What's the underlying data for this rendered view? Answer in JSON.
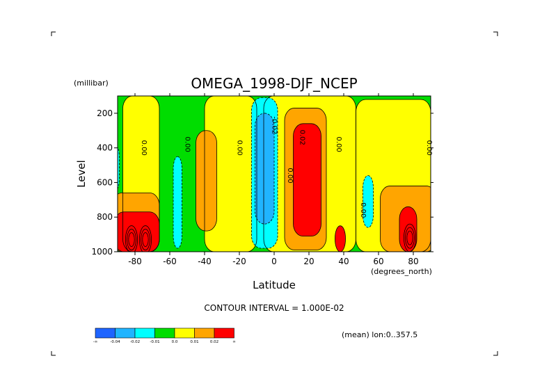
{
  "chart_data": {
    "type": "heatmap",
    "title": "OMEGA_1998-DJF_NCEP",
    "xlabel": "Latitude",
    "ylabel": "Level",
    "x_units": "(degrees_north)",
    "y_units": "(millibar)",
    "xlim": [
      -90,
      90
    ],
    "ylim": [
      1000,
      100
    ],
    "x_ticks": [
      -80,
      -60,
      -40,
      -20,
      0,
      20,
      40,
      60,
      80
    ],
    "y_ticks": [
      200,
      400,
      600,
      800,
      1000
    ],
    "contour_interval_text": "CONTOUR INTERVAL = 1.000E-02",
    "subtitle": "(mean) lon:0..357.5",
    "colorbar": {
      "colors": [
        "#1e64ff",
        "#20b4ff",
        "#00ffff",
        "#00dd00",
        "#ffff00",
        "#ffa500",
        "#ff0000"
      ],
      "labels": [
        "-∞",
        "-0.04",
        "-0.02",
        "-0.01",
        "0.0",
        "0.01",
        "0.02",
        "∞"
      ]
    },
    "contour_labels": [
      {
        "text": "0.00",
        "lat": -76,
        "level": 400
      },
      {
        "text": "0.00",
        "lat": -51,
        "level": 380
      },
      {
        "text": "0.00",
        "lat": -21,
        "level": 400
      },
      {
        "text": "-0.02",
        "lat": -1,
        "level": 270
      },
      {
        "text": "0.02",
        "lat": 15,
        "level": 340
      },
      {
        "text": "0.00",
        "lat": 8,
        "level": 560
      },
      {
        "text": "0.00",
        "lat": 36,
        "level": 380
      },
      {
        "text": "0.00",
        "lat": 50,
        "level": 760
      },
      {
        "text": "0.00",
        "lat": 88,
        "level": 400
      }
    ],
    "regions": [
      {
        "category": "green",
        "lat_range": [
          -90,
          90
        ],
        "level_range": [
          100,
          1000
        ]
      },
      {
        "category": "yellow",
        "lat_range": [
          -87,
          -66
        ],
        "level_range": [
          100,
          1000
        ]
      },
      {
        "category": "yellow",
        "lat_range": [
          -40,
          -10
        ],
        "level_range": [
          100,
          1000
        ]
      },
      {
        "category": "yellow",
        "lat_range": [
          -6,
          47
        ],
        "level_range": [
          100,
          1000
        ]
      },
      {
        "category": "yellow",
        "lat_range": [
          47,
          90
        ],
        "level_range": [
          120,
          1000
        ]
      },
      {
        "category": "orange",
        "lat_range": [
          -45,
          -33
        ],
        "level_range": [
          300,
          880
        ]
      },
      {
        "category": "orange",
        "lat_range": [
          6,
          30
        ],
        "level_range": [
          170,
          990
        ]
      },
      {
        "category": "orange",
        "lat_range": [
          61,
          93
        ],
        "level_range": [
          620,
          1000
        ]
      },
      {
        "category": "orange",
        "lat_range": [
          -93,
          -66
        ],
        "level_range": [
          660,
          1000
        ]
      },
      {
        "category": "cyan",
        "lat_range": [
          -13,
          2
        ],
        "level_range": [
          110,
          980
        ]
      },
      {
        "category": "cyan",
        "lat_range": [
          -58,
          -53
        ],
        "level_range": [
          450,
          980
        ]
      },
      {
        "category": "cyan",
        "lat_range": [
          -92,
          -89
        ],
        "level_range": [
          390,
          640
        ]
      },
      {
        "category": "cyan",
        "lat_range": [
          51,
          57
        ],
        "level_range": [
          560,
          860
        ]
      },
      {
        "category": "light_blue",
        "lat_range": [
          -11,
          0
        ],
        "level_range": [
          200,
          840
        ]
      },
      {
        "category": "red",
        "lat_range": [
          11,
          27
        ],
        "level_range": [
          260,
          910
        ]
      },
      {
        "category": "red",
        "lat_range": [
          35,
          41
        ],
        "level_range": [
          850,
          1000
        ]
      },
      {
        "category": "red",
        "lat_range": [
          72,
          82
        ],
        "level_range": [
          740,
          1000
        ]
      },
      {
        "category": "red",
        "lat_range": [
          -92,
          -66
        ],
        "level_range": [
          770,
          1000
        ]
      }
    ]
  }
}
